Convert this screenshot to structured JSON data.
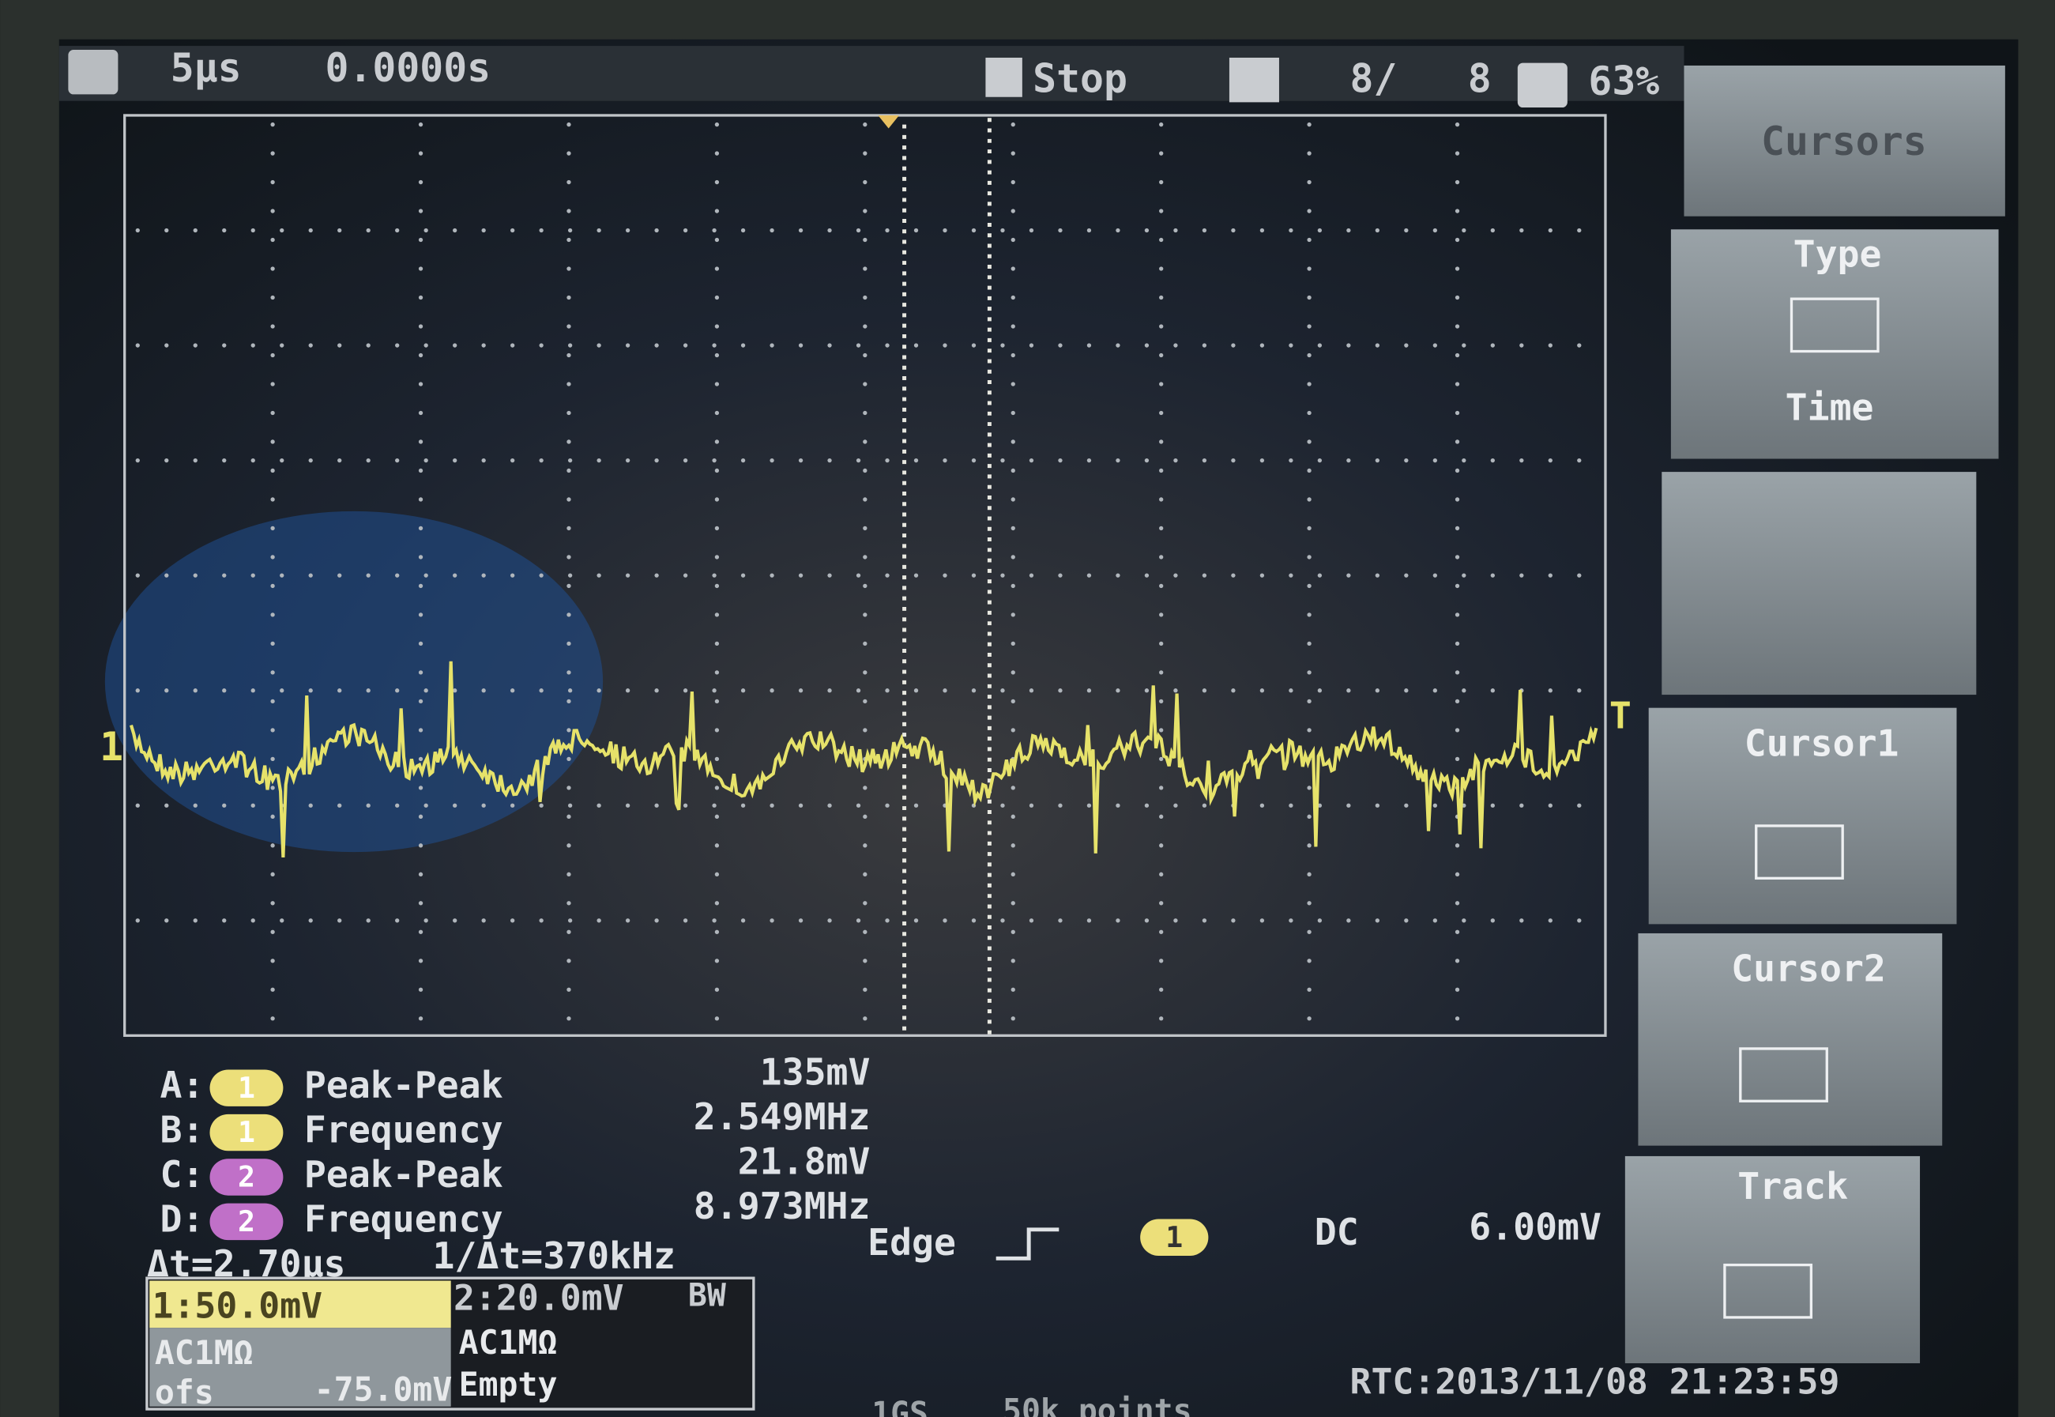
{
  "header": {
    "timebase": "5µs",
    "position": "0.0000s",
    "status": "Stop",
    "count": "8/",
    "count_total": "8",
    "battery": "63%"
  },
  "menu": {
    "title": "Cursors",
    "type_label": "Type",
    "type_value": "Time",
    "cursor1": "Cursor1",
    "cursor2": "Cursor2",
    "track": "Track"
  },
  "measurements": [
    {
      "slot": "A:",
      "channel": "1",
      "name": "Peak-Peak",
      "value": "135mV"
    },
    {
      "slot": "B:",
      "channel": "1",
      "name": "Frequency",
      "value": "2.549MHz"
    },
    {
      "slot": "C:",
      "channel": "2",
      "name": "Peak-Peak",
      "value": "21.8mV"
    },
    {
      "slot": "D:",
      "channel": "2",
      "name": "Frequency",
      "value": "8.973MHz"
    }
  ],
  "cursor_readout": {
    "delta_t": "Δt=2.70µs",
    "inverse": "1/Δt=370kHz"
  },
  "trigger": {
    "mode": "Edge",
    "source": "1",
    "coupling": "DC",
    "level": "6.00mV"
  },
  "channels": {
    "ch1_scale": "1:50.0mV",
    "ch2_scale": "2:20.0mV",
    "bw": "BW",
    "ch1_coupling": "AC1MΩ",
    "ch2_coupling": "AC1MΩ",
    "offset_label": "ofs",
    "offset_value": "-75.0mV",
    "ch2_state": "Empty"
  },
  "markers": {
    "channel": "1",
    "trigger": "T"
  },
  "footer": {
    "rate": "1GS",
    "depth": "50k points",
    "rtc": "RTC:2013/11/08 21:23:59"
  }
}
